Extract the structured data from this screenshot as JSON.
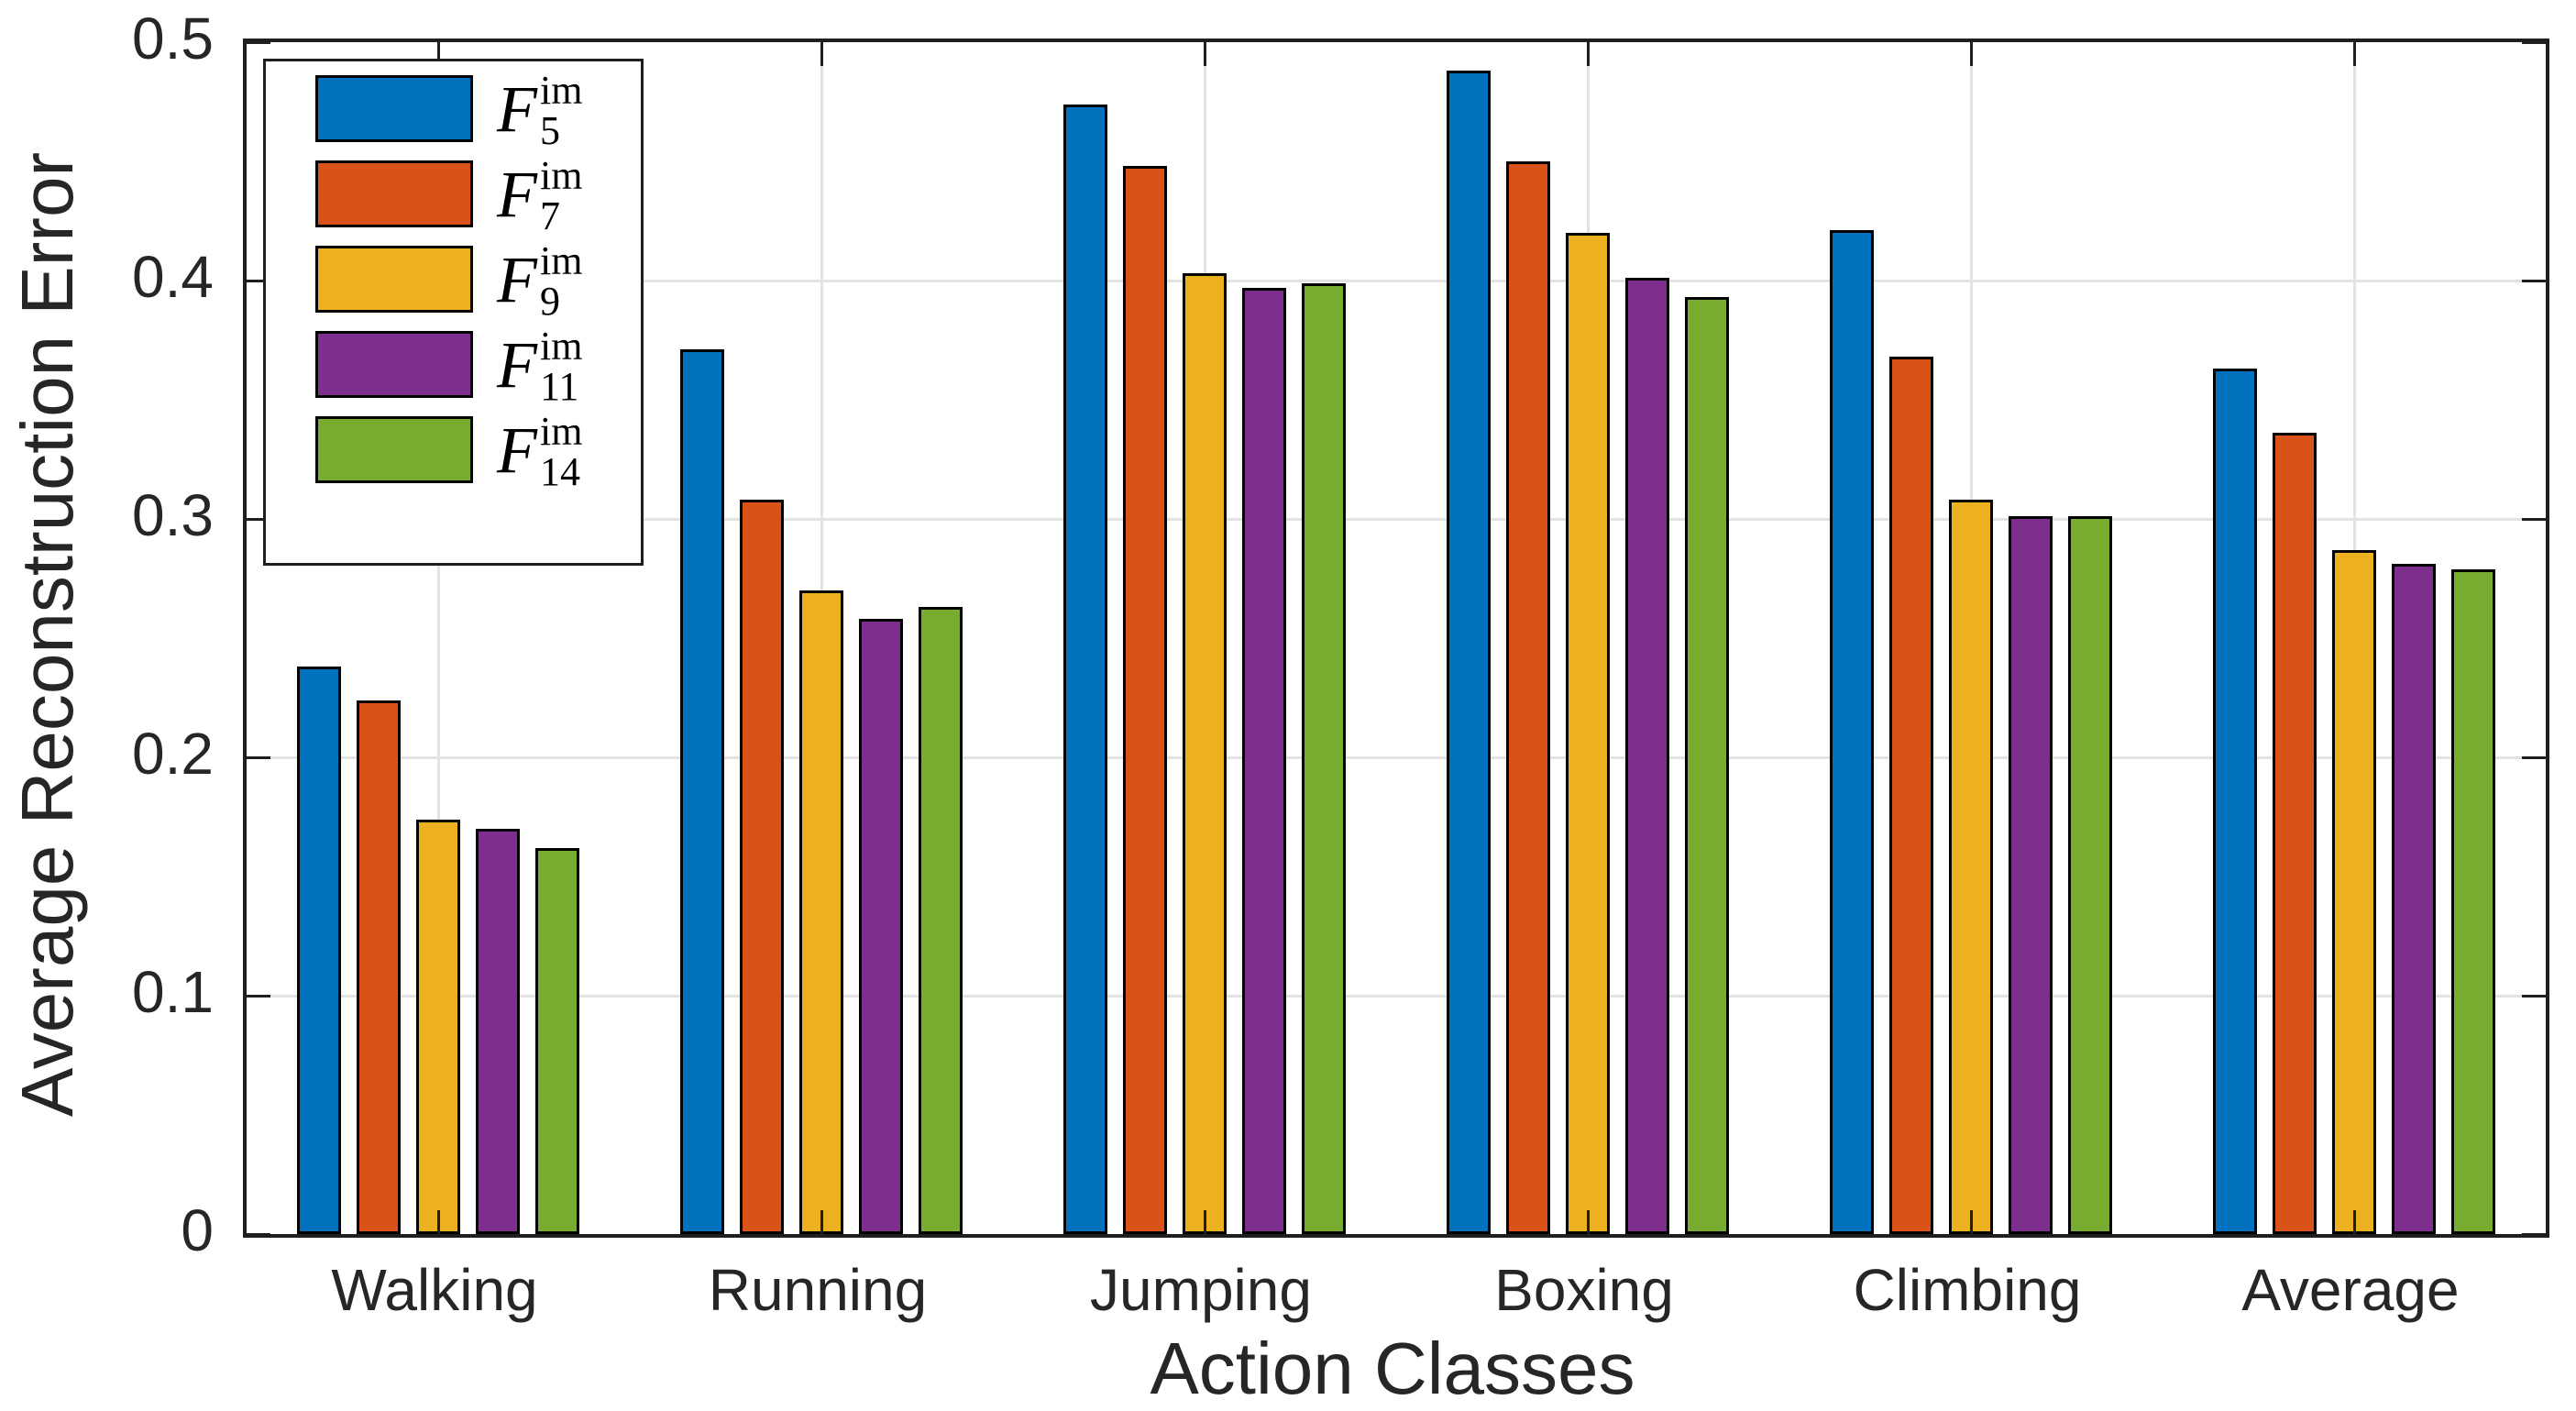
{
  "chart_data": {
    "type": "bar",
    "grouped": true,
    "title": "",
    "xlabel": "Action Classes",
    "ylabel": "Average Reconstruction Error",
    "categories": [
      "Walking",
      "Running",
      "Jumping",
      "Boxing",
      "Climbing",
      "Average"
    ],
    "series": [
      {
        "label_base": "F",
        "label_sup": "im",
        "label_sub": "5",
        "color": "#0072BD",
        "values": [
          0.238,
          0.371,
          0.474,
          0.488,
          0.421,
          0.363
        ]
      },
      {
        "label_base": "F",
        "label_sup": "im",
        "label_sub": "7",
        "color": "#D95319",
        "values": [
          0.224,
          0.308,
          0.448,
          0.45,
          0.368,
          0.336
        ]
      },
      {
        "label_base": "F",
        "label_sup": "im",
        "label_sub": "9",
        "color": "#EDB120",
        "values": [
          0.174,
          0.27,
          0.403,
          0.42,
          0.308,
          0.287
        ]
      },
      {
        "label_base": "F",
        "label_sup": "im",
        "label_sub": "11",
        "color": "#7E2F8E",
        "values": [
          0.17,
          0.258,
          0.397,
          0.401,
          0.301,
          0.281
        ]
      },
      {
        "label_base": "F",
        "label_sup": "im",
        "label_sub": "14",
        "color": "#77AC30",
        "values": [
          0.162,
          0.263,
          0.399,
          0.393,
          0.301,
          0.279
        ]
      }
    ],
    "yticks": [
      0,
      0.1,
      0.2,
      0.3,
      0.4,
      0.5
    ],
    "ytick_labels": [
      "0",
      "0.1",
      "0.2",
      "0.3",
      "0.4",
      "0.5"
    ],
    "ylim": [
      0,
      0.5
    ],
    "grid": "both",
    "legend_position": "top-left-inside",
    "colors": {
      "axis": "#1f1f1f",
      "grid": "#e3e3e3",
      "bar_edge": "#000000",
      "background": "#ffffff"
    }
  }
}
